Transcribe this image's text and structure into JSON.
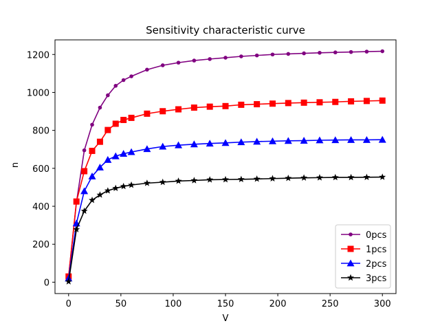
{
  "chart_data": {
    "type": "line",
    "title": "Sensitivity characteristic curve",
    "xlabel": "V",
    "ylabel": "n",
    "xlim": [
      -13,
      313
    ],
    "ylim": [
      -60,
      1277
    ],
    "xticks": [
      0,
      50,
      100,
      150,
      200,
      250,
      300
    ],
    "yticks": [
      0,
      200,
      400,
      600,
      800,
      1000,
      1200
    ],
    "grid": false,
    "legend_position": "lower-right",
    "x": [
      0,
      7.5,
      15,
      22.5,
      30,
      37.5,
      45,
      52.5,
      60,
      75,
      90,
      105,
      120,
      135,
      150,
      165,
      180,
      195,
      210,
      225,
      240,
      255,
      270,
      285,
      300
    ],
    "series": [
      {
        "name": "0pcs",
        "color": "#800080",
        "marker": "dot",
        "values": [
          30,
          420,
          695,
          830,
          920,
          985,
          1035,
          1065,
          1085,
          1120,
          1143,
          1157,
          1168,
          1176,
          1183,
          1190,
          1195,
          1200,
          1203,
          1206,
          1209,
          1211,
          1213,
          1215,
          1217
        ]
      },
      {
        "name": "1pcs",
        "color": "#ff0000",
        "marker": "square",
        "values": [
          30,
          425,
          585,
          692,
          740,
          802,
          835,
          855,
          866,
          888,
          901,
          911,
          920,
          925,
          928,
          935,
          938,
          941,
          944,
          946,
          948,
          950,
          953,
          955,
          957
        ]
      },
      {
        "name": "2pcs",
        "color": "#0000ff",
        "marker": "triangle",
        "values": [
          20,
          310,
          480,
          558,
          605,
          645,
          664,
          677,
          686,
          702,
          715,
          722,
          727,
          731,
          734,
          738,
          741,
          743,
          745,
          746,
          748,
          749,
          750,
          750,
          751
        ]
      },
      {
        "name": "3pcs",
        "color": "#000000",
        "marker": "star",
        "values": [
          3,
          278,
          375,
          432,
          460,
          482,
          495,
          505,
          512,
          522,
          527,
          533,
          536,
          540,
          541,
          542,
          544,
          546,
          548,
          550,
          551,
          552,
          552,
          553,
          554
        ]
      }
    ]
  }
}
